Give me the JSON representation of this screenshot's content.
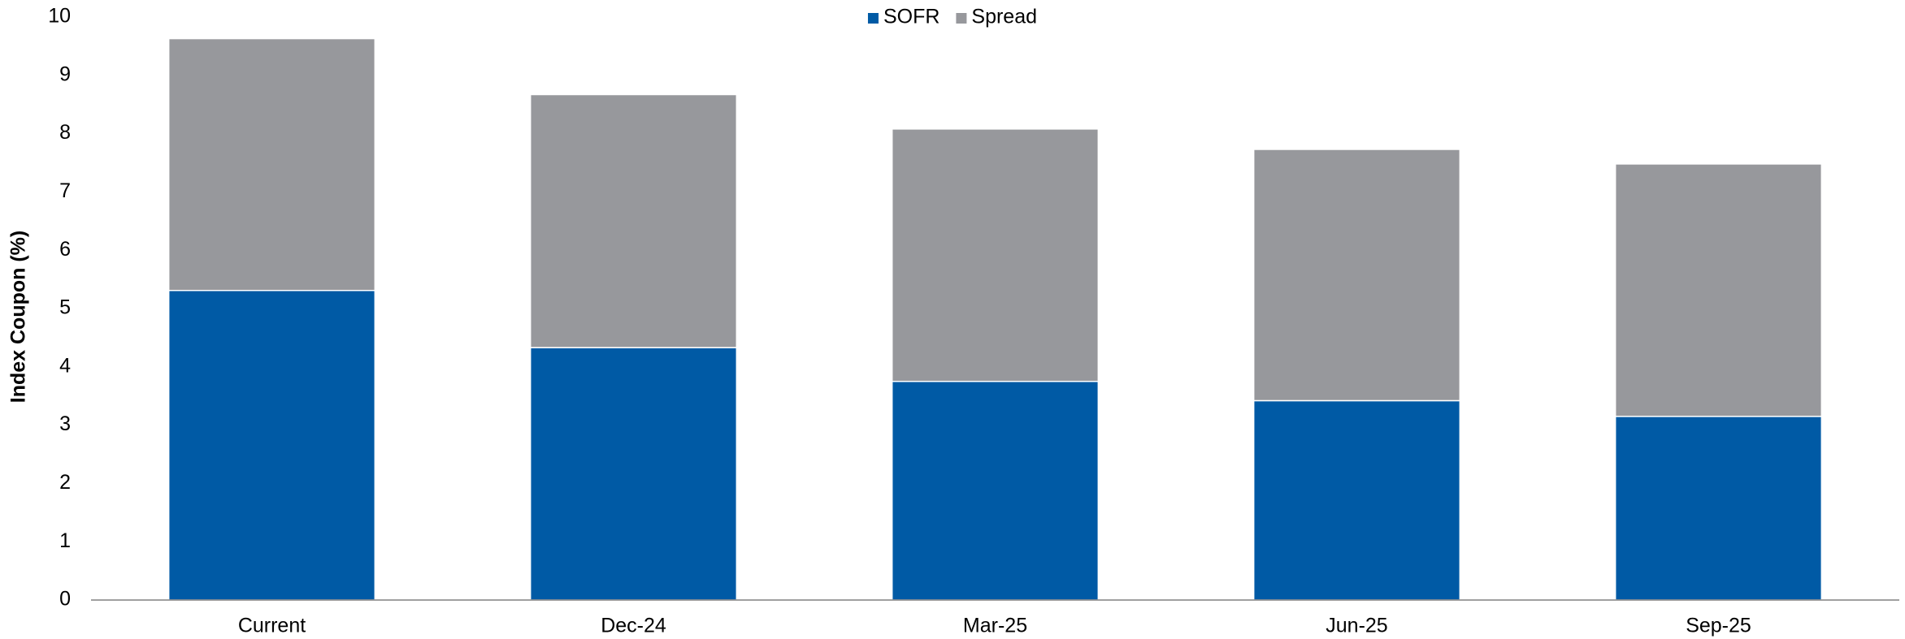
{
  "chart_data": {
    "type": "stacked_bar",
    "y_label": "Index Coupon (%)",
    "categories": [
      "Current",
      "Dec-24",
      "Mar-25",
      "Jun-25",
      "Sep-25"
    ],
    "series": [
      {
        "name": "SOFR",
        "color": "#005aa5",
        "values": [
          5.31,
          4.33,
          3.75,
          3.42,
          3.15
        ]
      },
      {
        "name": "Spread",
        "color": "#97989c",
        "values": [
          4.32,
          4.34,
          4.33,
          4.31,
          4.33
        ]
      }
    ],
    "ylim": [
      0,
      10
    ],
    "yticks": [
      0,
      1,
      2,
      3,
      4,
      5,
      6,
      7,
      8,
      9,
      10
    ],
    "legend": "top"
  }
}
